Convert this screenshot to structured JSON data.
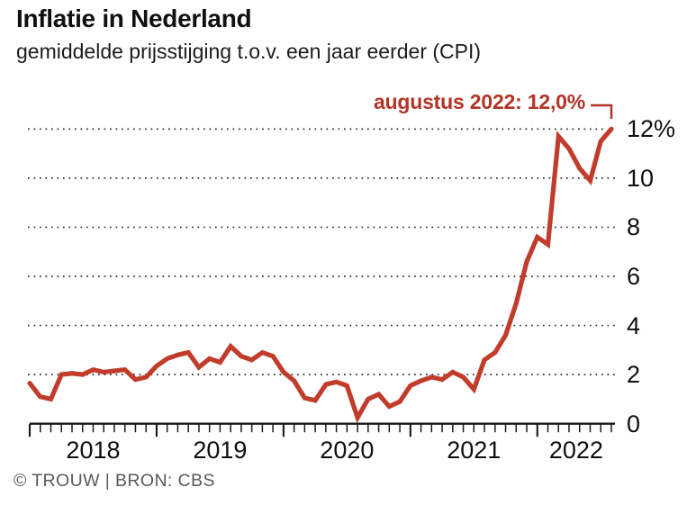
{
  "header": {
    "title": "Inflatie in Nederland",
    "subtitle": "gemiddelde prijsstijging t.o.v. een jaar eerder (CPI)"
  },
  "annotation": {
    "label": "augustus 2022: 12,0%"
  },
  "footer": {
    "credit": "© TROUW | BRON: CBS"
  },
  "colors": {
    "line": "#c23c2b",
    "annotation_red": "#b23427",
    "axis": "#191919",
    "grid_dots": "#2f2f2f",
    "text": "#101010",
    "credit_gray": "#5a5a5a"
  },
  "chart_data": {
    "type": "line",
    "unit": "%",
    "title": "Inflatie in Nederland",
    "subtitle": "gemiddelde prijsstijging t.o.v. een jaar eerder (CPI)",
    "grid": "dotted horizontal gridlines, solid baseline axis",
    "legend": "none",
    "ylim": [
      0,
      12
    ],
    "y_ticks": [
      {
        "label": "12%",
        "value": 12
      },
      {
        "label": "10",
        "value": 10
      },
      {
        "label": "8",
        "value": 8
      },
      {
        "label": "6",
        "value": 6
      },
      {
        "label": "4",
        "value": 4
      },
      {
        "label": "2",
        "value": 2
      },
      {
        "label": "0",
        "value": 0
      }
    ],
    "x_tick_years": [
      "2018",
      "2019",
      "2020",
      "2021",
      "2022"
    ],
    "series": [
      {
        "name": "CPI inflatie Nederland",
        "frequency": "monthly",
        "start": "januari 2018",
        "end": "augustus 2022",
        "values": [
          1.65,
          1.1,
          1.0,
          2.0,
          2.05,
          2.0,
          2.2,
          2.1,
          2.15,
          2.2,
          1.8,
          1.9,
          2.35,
          2.65,
          2.8,
          2.9,
          2.3,
          2.65,
          2.5,
          3.15,
          2.75,
          2.6,
          2.9,
          2.75,
          2.1,
          1.75,
          1.05,
          0.95,
          1.6,
          1.7,
          1.55,
          0.25,
          1.0,
          1.2,
          0.7,
          0.9,
          1.55,
          1.75,
          1.9,
          1.8,
          2.1,
          1.9,
          1.4,
          2.6,
          2.9,
          3.6,
          4.9,
          6.6,
          7.6,
          7.3,
          11.7,
          11.2,
          10.4,
          9.9,
          11.5,
          12.0
        ]
      }
    ],
    "highlight_point": {
      "x": "augustus 2022",
      "value": 12.0,
      "label": "augustus 2022: 12,0%"
    }
  }
}
